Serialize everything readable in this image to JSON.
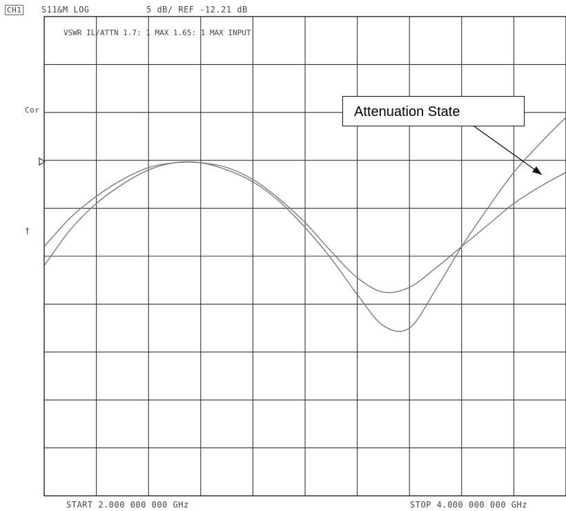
{
  "header": {
    "channel": "CH1",
    "mode": "S11&M LOG",
    "scale": "5 dB/ REF -12.21 dB"
  },
  "side": {
    "correction": "Cor",
    "marker_arrow": "†"
  },
  "footer": {
    "start": "START 2.000 000 000 GHz",
    "stop": "STOP 4.000 000 000 GHz"
  },
  "annotation": {
    "callout_label": "Attenuation State"
  },
  "chart_data": {
    "type": "line",
    "overlay_text": "VSWR IL/ATTN 1.7: 1 MAX 1.65: 1 MAX INPUT",
    "x_unit": "GHz",
    "xlim": [
      2.0,
      4.0
    ],
    "ylim_div": [
      0,
      10
    ],
    "reference_level_db": -12.21,
    "scale_db_per_div": 5,
    "grid": true,
    "divisions": {
      "x": 10,
      "y": 10
    },
    "trace_color": "#7a7a7a",
    "series": [
      {
        "x": [
          2.0,
          2.1,
          2.2,
          2.3,
          2.4,
          2.5,
          2.6,
          2.7,
          2.8,
          2.9,
          3.0,
          3.1,
          3.2,
          3.3,
          3.4,
          3.5,
          3.6,
          3.7,
          3.8,
          3.9,
          4.0
        ],
        "y": [
          5.2,
          5.8,
          6.25,
          6.6,
          6.85,
          6.95,
          6.95,
          6.85,
          6.6,
          6.2,
          5.7,
          5.1,
          4.55,
          4.25,
          4.35,
          4.75,
          5.2,
          5.65,
          6.1,
          6.45,
          6.75
        ]
      },
      {
        "x": [
          2.0,
          2.1,
          2.2,
          2.3,
          2.4,
          2.5,
          2.6,
          2.7,
          2.8,
          2.9,
          3.0,
          3.1,
          3.2,
          3.3,
          3.4,
          3.5,
          3.6,
          3.7,
          3.8,
          3.9,
          4.0
        ],
        "y": [
          4.8,
          5.55,
          6.1,
          6.5,
          6.8,
          6.95,
          6.95,
          6.8,
          6.55,
          6.15,
          5.6,
          4.95,
          4.2,
          3.55,
          3.5,
          4.3,
          5.2,
          6.0,
          6.75,
          7.35,
          7.9
        ]
      }
    ]
  }
}
